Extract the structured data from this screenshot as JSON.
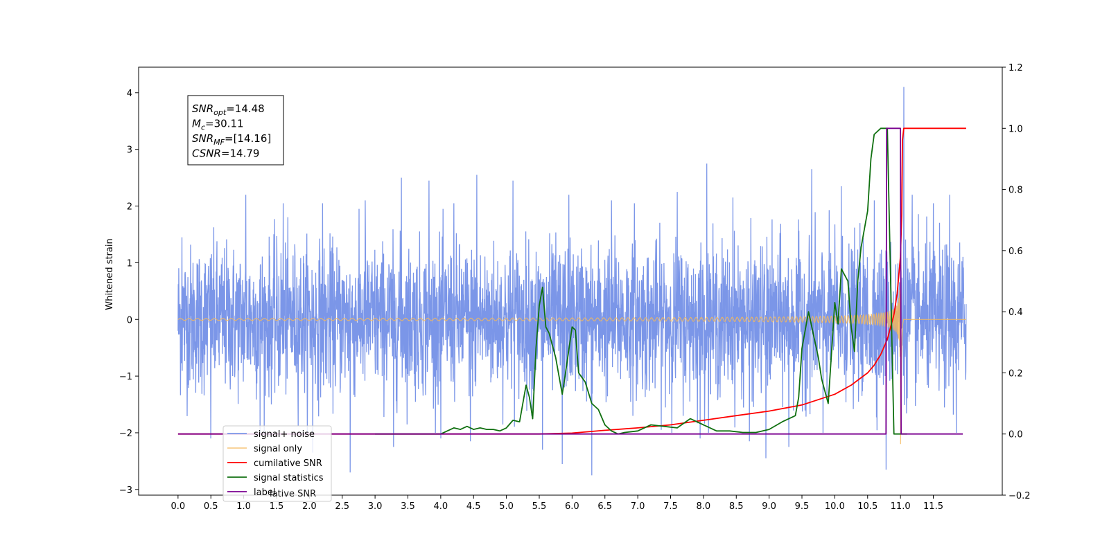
{
  "chart_data": {
    "type": "line",
    "ylabel_left": "Whitened strain",
    "xlim": [
      -0.6,
      12.55
    ],
    "ylim_left": [
      -3.1,
      4.45
    ],
    "ylim_right": [
      -0.2,
      1.2
    ],
    "x_ticks": [
      "0.0",
      "0.5",
      "1.0",
      "1.5",
      "2.0",
      "2.5",
      "3.0",
      "3.5",
      "4.0",
      "4.5",
      "5.0",
      "5.5",
      "6.0",
      "6.5",
      "7.0",
      "7.5",
      "8.0",
      "8.5",
      "9.0",
      "9.5",
      "10.0",
      "10.5",
      "11.0",
      "11.5"
    ],
    "y_ticks_left": [
      "−3",
      "−2",
      "−1",
      "0",
      "1",
      "2",
      "3",
      "4"
    ],
    "y_ticks_right": [
      "−0.2",
      "0.0",
      "0.2",
      "0.4",
      "0.6",
      "0.8",
      "1.0",
      "1.2"
    ],
    "annotation": {
      "lines": [
        {
          "base": "SNR",
          "sub": "opt",
          "rest": "=14.48"
        },
        {
          "base": "M",
          "sub": "c",
          "rest": "=30.11"
        },
        {
          "base": "SNR",
          "sub": "MF",
          "rest": "=[14.16]"
        },
        {
          "base": "CSNR",
          "sub": "",
          "rest": "=14.79"
        }
      ]
    },
    "legend": {
      "placement": "lower-left",
      "entries": [
        "signal+ noise",
        "signal only",
        "cumilative SNR",
        "signal statistics",
        "label"
      ],
      "ghost_text": "lative SNR"
    },
    "series": [
      {
        "name": "signal+ noise",
        "axis": "left",
        "color": "#7b96e8",
        "kind": "noise",
        "x_range": [
          0.0,
          12.0
        ],
        "std": 0.65,
        "peaks": [
          [
            0.06,
            1.45
          ],
          [
            0.5,
            -2.1
          ],
          [
            1.03,
            2.2
          ],
          [
            1.25,
            -2.0
          ],
          [
            1.6,
            2.05
          ],
          [
            2.05,
            -2.35
          ],
          [
            2.2,
            2.05
          ],
          [
            2.62,
            -2.7
          ],
          [
            2.85,
            2.1
          ],
          [
            3.28,
            -2.25
          ],
          [
            3.4,
            2.5
          ],
          [
            3.82,
            2.45
          ],
          [
            4.0,
            -2.1
          ],
          [
            4.2,
            2.05
          ],
          [
            4.45,
            -2.15
          ],
          [
            4.55,
            2.55
          ],
          [
            5.1,
            2.45
          ],
          [
            5.55,
            -2.3
          ],
          [
            5.85,
            -2.55
          ],
          [
            5.95,
            2.2
          ],
          [
            6.3,
            -2.75
          ],
          [
            6.6,
            2.1
          ],
          [
            6.95,
            2.05
          ],
          [
            7.6,
            2.25
          ],
          [
            7.95,
            -2.1
          ],
          [
            8.05,
            2.75
          ],
          [
            8.45,
            2.15
          ],
          [
            8.7,
            -2.15
          ],
          [
            8.95,
            -2.45
          ],
          [
            9.3,
            -2.25
          ],
          [
            9.65,
            2.65
          ],
          [
            9.82,
            -2.0
          ],
          [
            10.1,
            2.35
          ],
          [
            10.6,
            2.1
          ],
          [
            10.78,
            -2.65
          ],
          [
            11.05,
            4.1
          ],
          [
            11.18,
            2.2
          ],
          [
            11.5,
            2.05
          ],
          [
            11.75,
            2.2
          ],
          [
            11.85,
            -2.0
          ]
        ]
      },
      {
        "name": "signal only",
        "axis": "left",
        "color": "#f5b85a",
        "kind": "chirp",
        "x_range": [
          0.0,
          12.0
        ],
        "merger_time": 11.0,
        "peaks": [
          [
            10.0,
            0.12
          ],
          [
            10.5,
            0.28
          ],
          [
            10.8,
            0.55
          ],
          [
            10.95,
            0.95
          ],
          [
            11.0,
            -2.5
          ]
        ]
      },
      {
        "name": "cumilative SNR",
        "axis": "right",
        "color": "#ff0000",
        "x": [
          0.0,
          5.5,
          6.0,
          6.5,
          7.0,
          7.5,
          8.0,
          8.5,
          9.0,
          9.5,
          10.0,
          10.25,
          10.5,
          10.6,
          10.7,
          10.8,
          10.9,
          10.95,
          11.0,
          11.02,
          11.03,
          11.05,
          11.1,
          12.0
        ],
        "values": [
          0.0,
          0.0,
          0.003,
          0.012,
          0.02,
          0.03,
          0.045,
          0.06,
          0.075,
          0.095,
          0.13,
          0.16,
          0.2,
          0.225,
          0.26,
          0.31,
          0.39,
          0.46,
          0.58,
          0.72,
          0.96,
          1.0,
          1.0,
          1.0
        ]
      },
      {
        "name": "signal statistics",
        "axis": "right",
        "color": "#107010",
        "x": [
          3.0,
          3.8,
          4.0,
          4.1,
          4.2,
          4.3,
          4.4,
          4.5,
          4.6,
          4.7,
          4.8,
          4.9,
          5.0,
          5.1,
          5.2,
          5.3,
          5.35,
          5.4,
          5.45,
          5.5,
          5.55,
          5.6,
          5.65,
          5.75,
          5.85,
          5.9,
          6.0,
          6.05,
          6.1,
          6.2,
          6.3,
          6.4,
          6.5,
          6.6,
          6.7,
          6.8,
          7.0,
          7.2,
          7.4,
          7.6,
          7.8,
          8.0,
          8.2,
          8.4,
          8.6,
          8.8,
          9.0,
          9.2,
          9.4,
          9.45,
          9.5,
          9.6,
          9.7,
          9.75,
          9.8,
          9.9,
          10.0,
          10.05,
          10.1,
          10.2,
          10.25,
          10.3,
          10.35,
          10.4,
          10.5,
          10.55,
          10.6,
          10.7,
          10.8,
          10.9,
          11.0,
          11.05,
          11.1
        ],
        "values": [
          0.0,
          0.0,
          0.0,
          0.01,
          0.02,
          0.015,
          0.025,
          0.015,
          0.02,
          0.015,
          0.015,
          0.01,
          0.02,
          0.045,
          0.04,
          0.16,
          0.12,
          0.05,
          0.28,
          0.42,
          0.48,
          0.35,
          0.33,
          0.25,
          0.13,
          0.2,
          0.35,
          0.34,
          0.2,
          0.17,
          0.1,
          0.08,
          0.03,
          0.01,
          0.0,
          0.005,
          0.01,
          0.03,
          0.025,
          0.02,
          0.05,
          0.03,
          0.01,
          0.01,
          0.005,
          0.005,
          0.015,
          0.04,
          0.06,
          0.12,
          0.28,
          0.4,
          0.3,
          0.25,
          0.18,
          0.1,
          0.43,
          0.36,
          0.54,
          0.5,
          0.35,
          0.27,
          0.5,
          0.61,
          0.73,
          0.9,
          0.98,
          1.0,
          1.0,
          0.0,
          0.0,
          0.0,
          0.0
        ]
      },
      {
        "name": "label",
        "axis": "right",
        "color": "#7a0090",
        "x": [
          0.0,
          10.78,
          10.79,
          11.0,
          11.01,
          11.95
        ],
        "values": [
          0.0,
          0.0,
          1.0,
          1.0,
          0.0,
          0.0
        ]
      }
    ]
  }
}
